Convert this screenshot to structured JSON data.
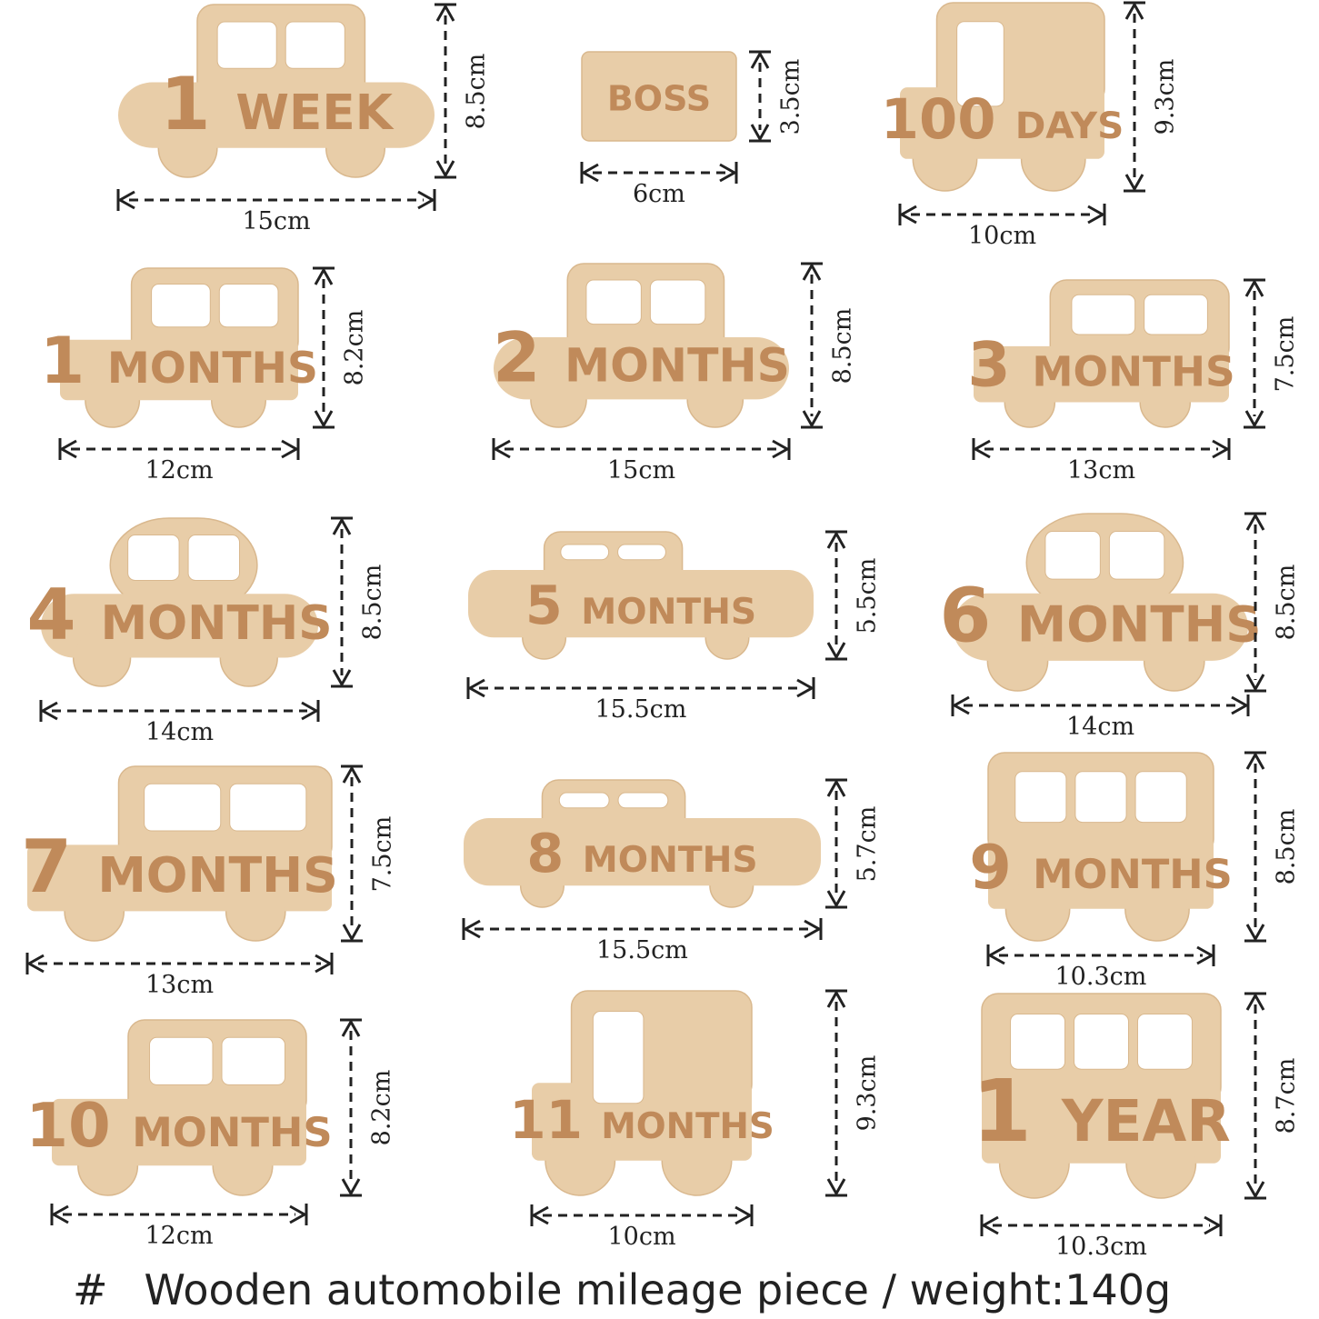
{
  "colors": {
    "wood": "#e8cda8",
    "wood_edge": "#d9b88e",
    "engraving": "#c08a5a",
    "dimension_line": "#222222"
  },
  "pieces": [
    {
      "number": "1",
      "word": "WEEK",
      "width": "15cm",
      "height": "8.5cm",
      "shape": "car"
    },
    {
      "number": "",
      "word": "BOSS",
      "width": "6cm",
      "height": "3.5cm",
      "shape": "plate"
    },
    {
      "number": "100",
      "word": "DAYS",
      "width": "10cm",
      "height": "9.3cm",
      "shape": "truck"
    },
    {
      "number": "1",
      "word": "MONTHS",
      "width": "12cm",
      "height": "8.2cm",
      "shape": "van"
    },
    {
      "number": "2",
      "word": "MONTHS",
      "width": "15cm",
      "height": "8.5cm",
      "shape": "car"
    },
    {
      "number": "3",
      "word": "MONTHS",
      "width": "13cm",
      "height": "7.5cm",
      "shape": "suv"
    },
    {
      "number": "4",
      "word": "MONTHS",
      "width": "14cm",
      "height": "8.5cm",
      "shape": "beetle"
    },
    {
      "number": "5",
      "word": "MONTHS",
      "width": "15.5cm",
      "height": "5.5cm",
      "shape": "sedan"
    },
    {
      "number": "6",
      "word": "MONTHS",
      "width": "14cm",
      "height": "8.5cm",
      "shape": "beetle"
    },
    {
      "number": "7",
      "word": "MONTHS",
      "width": "13cm",
      "height": "7.5cm",
      "shape": "suv"
    },
    {
      "number": "8",
      "word": "MONTHS",
      "width": "15.5cm",
      "height": "5.7cm",
      "shape": "sedan"
    },
    {
      "number": "9",
      "word": "MONTHS",
      "width": "10.3cm",
      "height": "8.5cm",
      "shape": "bus"
    },
    {
      "number": "10",
      "word": "MONTHS",
      "width": "12cm",
      "height": "8.2cm",
      "shape": "van"
    },
    {
      "number": "11",
      "word": "MONTHS",
      "width": "10cm",
      "height": "9.3cm",
      "shape": "truck"
    },
    {
      "number": "1",
      "word": "YEAR",
      "width": "10.3cm",
      "height": "8.7cm",
      "shape": "bus"
    }
  ],
  "caption": {
    "symbol": "#",
    "text": "Wooden automobile mileage piece / weight:140g"
  }
}
